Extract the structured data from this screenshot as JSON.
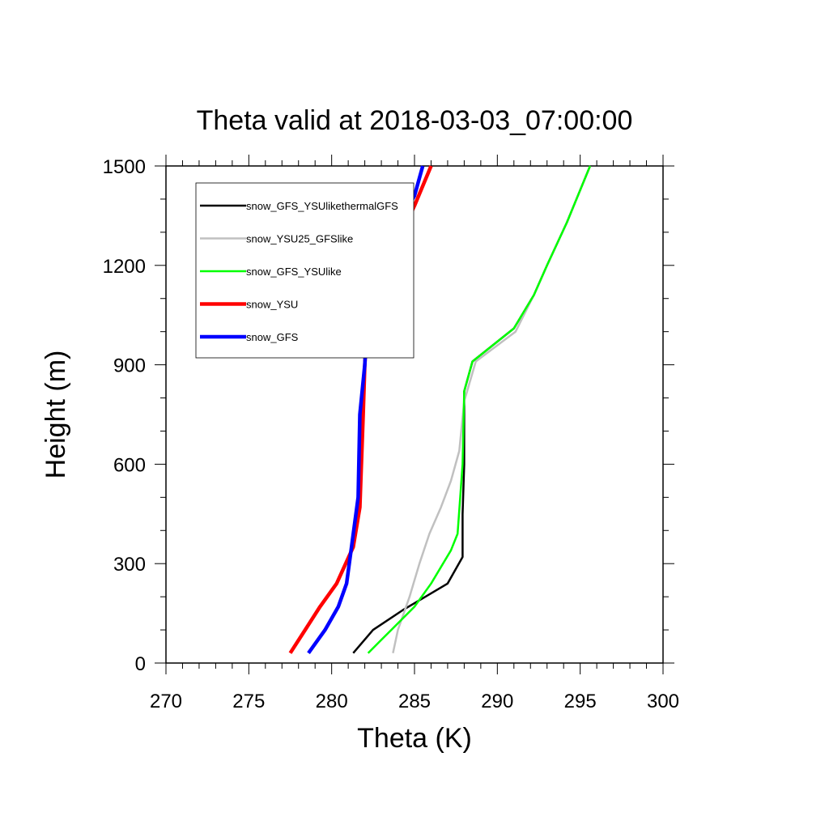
{
  "chart_data": {
    "type": "line",
    "title": "Theta valid at 2018-03-03_07:00:00",
    "xlabel": "Theta (K)",
    "ylabel": "Height (m)",
    "xlim": [
      270,
      300
    ],
    "ylim": [
      0,
      1500
    ],
    "xticks": [
      270,
      275,
      280,
      285,
      290,
      295,
      300
    ],
    "yticks": [
      0,
      300,
      600,
      900,
      1200,
      1500
    ],
    "grid": false,
    "legend_position": "top-left",
    "series": [
      {
        "name": "snow_GFS_YSUlikethermalGFS",
        "color": "#000000",
        "x": [
          281.3,
          282.5,
          284.3,
          287.0,
          287.9,
          287.9,
          288.0,
          288.0,
          288.5,
          291.0,
          292.2,
          293.0,
          294.2,
          295.6
        ],
        "y": [
          30,
          100,
          160,
          240,
          320,
          450,
          600,
          820,
          910,
          1010,
          1110,
          1200,
          1330,
          1500
        ]
      },
      {
        "name": "snow_YSU25_GFSlike",
        "color": "#c0c0c0",
        "x": [
          283.7,
          284.0,
          284.7,
          285.3,
          285.9,
          286.6,
          287.2,
          287.7,
          288.0,
          288.7,
          291.1,
          292.2,
          293.0,
          294.2,
          295.6
        ],
        "y": [
          30,
          100,
          200,
          300,
          390,
          470,
          550,
          640,
          790,
          910,
          1000,
          1110,
          1200,
          1330,
          1500
        ]
      },
      {
        "name": "snow_GFS_YSUlike",
        "color": "#00ff00",
        "x": [
          282.2,
          283.0,
          283.6,
          285.0,
          286.0,
          287.2,
          287.6,
          287.9,
          288.0,
          288.5,
          291.0,
          292.2,
          293.0,
          294.2,
          295.6
        ],
        "y": [
          30,
          70,
          100,
          170,
          240,
          340,
          390,
          600,
          820,
          910,
          1010,
          1110,
          1200,
          1330,
          1500
        ]
      },
      {
        "name": "snow_YSU",
        "color": "#ff0000",
        "x": [
          277.5,
          278.4,
          279.3,
          280.3,
          281.3,
          281.7,
          281.9,
          282.0,
          282.1,
          282.5,
          283.3,
          285.0,
          286.0
        ],
        "y": [
          30,
          100,
          170,
          240,
          350,
          470,
          750,
          900,
          990,
          1090,
          1200,
          1380,
          1500
        ]
      },
      {
        "name": "snow_GFS",
        "color": "#0000ff",
        "x": [
          278.6,
          279.6,
          280.4,
          280.9,
          281.2,
          281.6,
          281.7,
          282.0,
          282.1,
          282.5,
          283.7,
          285.0,
          285.5
        ],
        "y": [
          30,
          100,
          170,
          240,
          350,
          500,
          750,
          900,
          990,
          1100,
          1300,
          1410,
          1500
        ]
      }
    ]
  }
}
